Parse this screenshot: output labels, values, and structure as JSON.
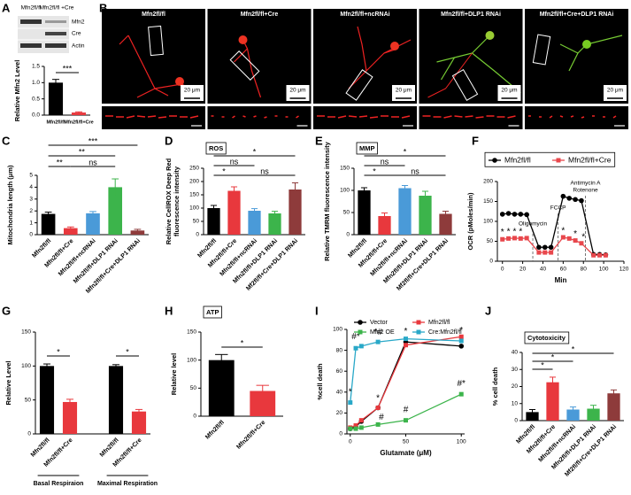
{
  "panel_labels": [
    "A",
    "B",
    "C",
    "D",
    "E",
    "F",
    "G",
    "H",
    "I",
    "J"
  ],
  "blot": {
    "columns": [
      "Mfn2fl/fl",
      "Mfn2fl/fl +Cre"
    ],
    "rows": [
      "Mfn2",
      "Cre",
      "Actin"
    ]
  },
  "micrographs": {
    "titles": [
      "Mfn2fl/fl",
      "Mfn2fl/fl+Cre",
      "Mfn2fl/fl+ncRNAi",
      "Mfn2fl/fl+DLP1 RNAi",
      "Mfn2fl/fl+Cre+DLP1 RNAi"
    ],
    "scale_bar": "20 μm"
  },
  "chart_data": [
    {
      "type": "bar",
      "ylabel": "Relative Mfn2 Level",
      "categories": [
        "Mfn2fl/fl",
        "Mfn2fl/fl+Cre"
      ],
      "values": [
        1.0,
        0.08
      ],
      "errors": [
        0.1,
        0.02
      ],
      "colors": [
        "#000000",
        "#e8383d"
      ],
      "ylim": [
        0,
        1.5
      ],
      "yticks": [
        {
          "value": 0,
          "label": "0.0"
        },
        0.5,
        {
          "value": 1,
          "label": "1.0"
        },
        1.5
      ],
      "annotations": [
        "***"
      ]
    },
    {
      "type": "bar",
      "ylabel": "Mitochondria length (μm)",
      "categories": [
        "Mfn2fl/fl",
        "Mfn2fl/fl+Cre",
        "Mfn2fl/fl+ncRNAi",
        "Mfn2fl/fl+DLP1 RNAi",
        "Mfn2fl/fl+Cre+DLP1 RNAi"
      ],
      "values": [
        1.75,
        0.55,
        1.8,
        4.0,
        0.35
      ],
      "errors": [
        0.15,
        0.1,
        0.15,
        0.7,
        0.1
      ],
      "colors": [
        "#000000",
        "#e8383d",
        "#4a9ad8",
        "#3cb44b",
        "#8e3b3b"
      ],
      "ylim": [
        0,
        5
      ],
      "yticks": [
        0,
        1,
        2,
        3,
        4,
        5
      ],
      "annotations": [
        "***",
        "**",
        "**",
        "ns"
      ]
    },
    {
      "type": "bar",
      "tag": "ROS",
      "ylabel": [
        "Relative CellROX Deep Red",
        "fluorescence intensity"
      ],
      "categories": [
        "Mfn2fl/fl",
        "Mfn2fl/fl+Cre",
        "Mfn2fl/fl+ncRNAi",
        "Mfn2fl/fl+DLP1 RNAi",
        "Mf2fl/fl+Cre+DLP1 RNAi"
      ],
      "values": [
        100,
        165,
        90,
        80,
        170
      ],
      "errors": [
        10,
        15,
        8,
        8,
        25
      ],
      "colors": [
        "#000000",
        "#e8383d",
        "#4a9ad8",
        "#3cb44b",
        "#8e3b3b"
      ],
      "ylim": [
        0,
        250
      ],
      "yticks": [
        0,
        50,
        100,
        150,
        200,
        250
      ],
      "annotations": [
        "*",
        "ns",
        "*",
        "ns"
      ]
    },
    {
      "type": "bar",
      "tag": "MMP",
      "ylabel": [
        "Relative TMRM fluorescence intensity"
      ],
      "categories": [
        "Mfn2fl/fl",
        "Mfn2fl/fl+Cre",
        "Mfn2fl/fl+ncRNAi",
        "Mfn2fl/fl+DLP1 RNAi",
        "Mf2fl/fl+Cre+DLP1 RNAi"
      ],
      "values": [
        100,
        42,
        105,
        88,
        47
      ],
      "errors": [
        6,
        7,
        6,
        10,
        6
      ],
      "colors": [
        "#000000",
        "#e8383d",
        "#4a9ad8",
        "#3cb44b",
        "#8e3b3b"
      ],
      "ylim": [
        0,
        150
      ],
      "yticks": [
        0,
        50,
        100,
        150
      ],
      "annotations": [
        "*",
        "ns",
        "*",
        "ns"
      ]
    },
    {
      "type": "line",
      "ylabel": "OCR (pMoles/min)",
      "xlabel": "Min",
      "x": [
        0,
        6,
        12,
        18,
        24,
        36,
        42,
        48,
        60,
        66,
        72,
        78,
        90,
        96,
        102
      ],
      "series": [
        {
          "name": "Mfn2fl/fl",
          "color": "#000000",
          "marker": "circle",
          "values": [
            118,
            120,
            118,
            118,
            117,
            35,
            35,
            35,
            163,
            158,
            155,
            152,
            17,
            17,
            16
          ]
        },
        {
          "name": "Mfn2fl/fl+Cre",
          "color": "#e8474c",
          "marker": "square",
          "values": [
            55,
            57,
            58,
            57,
            58,
            22,
            22,
            22,
            60,
            57,
            52,
            45,
            15,
            15,
            15
          ]
        }
      ],
      "xlim": [
        -5,
        120
      ],
      "xticks": [
        0,
        20,
        40,
        60,
        80,
        100,
        120
      ],
      "ylim": [
        0,
        200
      ],
      "yticks": [
        0,
        50,
        100,
        150,
        200
      ],
      "events": [
        {
          "x": 30,
          "label": "Oligomycin"
        },
        {
          "x": 55,
          "label": "FCCP"
        },
        {
          "x": 82,
          "label": [
            "Antimycin A",
            "Rotenone"
          ]
        }
      ],
      "annotations": [
        {
          "text": "*",
          "x": 0,
          "y": 72
        },
        {
          "text": "*",
          "x": 6,
          "y": 74
        },
        {
          "text": "*",
          "x": 12,
          "y": 74
        },
        {
          "text": "*",
          "x": 18,
          "y": 74
        },
        {
          "text": "*",
          "x": 60,
          "y": 76
        },
        {
          "text": "*",
          "x": 72,
          "y": 68
        },
        {
          "text": "*",
          "x": 80,
          "y": 60
        }
      ],
      "legend": "top"
    },
    {
      "type": "bar",
      "ylabel": "Relative Level",
      "categories": [
        "Mfn2fl/fl",
        "Mfn2fl/fl+Cre",
        "Mfn2fl/fl",
        "Mfn2fl/fl+Cre"
      ],
      "group_labels": [
        "Basal Respiraion",
        "Maximal Respiration"
      ],
      "values": [
        100,
        47,
        100,
        33
      ],
      "errors": [
        3,
        4,
        2,
        3
      ],
      "colors": [
        "#000000",
        "#e8383d",
        "#000000",
        "#e8383d"
      ],
      "ylim": [
        0,
        150
      ],
      "yticks": [
        0,
        50,
        100,
        150
      ],
      "annotations": [
        "*",
        "*"
      ]
    },
    {
      "type": "bar",
      "tag": "ATP",
      "ylabel": "Relative level",
      "categories": [
        "Mfn2fl/fl",
        "Mfn2fl/fl+Cre"
      ],
      "values": [
        100,
        45
      ],
      "errors": [
        10,
        10
      ],
      "colors": [
        "#000000",
        "#e8383d"
      ],
      "ylim": [
        0,
        150
      ],
      "yticks": [
        0,
        50,
        100,
        150
      ],
      "annotations": [
        "*"
      ]
    },
    {
      "type": "line",
      "ylabel": "%cell death",
      "xlabel": "Glutamate (μM)",
      "x": [
        0,
        5,
        10,
        25,
        50,
        100
      ],
      "series": [
        {
          "name": "Vector",
          "color": "#000000",
          "marker": "circle",
          "values": [
            5,
            7,
            12,
            25,
            88,
            84
          ]
        },
        {
          "name": "Mfn2fl/fl",
          "color": "#e8383d",
          "marker": "square",
          "values": [
            6,
            8,
            13,
            25,
            85,
            93
          ]
        },
        {
          "name": "Mfn2 OE",
          "color": "#3cb44b",
          "marker": "square",
          "values": [
            5,
            5,
            6,
            9,
            13,
            38
          ]
        },
        {
          "name": "Cre:Mfn2fl/fl",
          "color": "#29a8c8",
          "marker": "square",
          "values": [
            30,
            82,
            84,
            88,
            91,
            89
          ]
        }
      ],
      "xlim": [
        -3,
        103
      ],
      "xticks": [
        0,
        50,
        100
      ],
      "ylim": [
        0,
        100
      ],
      "yticks": [
        0,
        20,
        40,
        60,
        80,
        100
      ],
      "annotations": [
        {
          "text": "*",
          "x": 0,
          "y": 40
        },
        {
          "text": "#*",
          "x": 5,
          "y": 93
        },
        {
          "text": "*#",
          "x": 25,
          "y": 97
        },
        {
          "text": "*",
          "x": 25,
          "y": 34
        },
        {
          "text": "#",
          "x": 28,
          "y": 16
        },
        {
          "text": "*",
          "x": 50,
          "y": 98
        },
        {
          "text": "#",
          "x": 50,
          "y": 23
        },
        {
          "text": "*",
          "x": 100,
          "y": 99
        },
        {
          "text": "#*",
          "x": 100,
          "y": 48
        }
      ],
      "legend": "upper left"
    },
    {
      "type": "bar",
      "tag": "Cytotoxicity",
      "ylabel": "% cell death",
      "categories": [
        "Mfn2fl/fl",
        "Mfn2fl/fl+Cre",
        "Mfn2fl/fl+ncRNAi",
        "Mfn2fl/fl+DLP1 RNAi",
        "Mf2fl/fl+Cre+DLP1 RNAi"
      ],
      "values": [
        5,
        22.5,
        6.5,
        7,
        16
      ],
      "errors": [
        1.5,
        3,
        1.5,
        2,
        2
      ],
      "colors": [
        "#000000",
        "#e8383d",
        "#4a9ad8",
        "#3cb44b",
        "#8e3b3b"
      ],
      "ylim": [
        0,
        40
      ],
      "yticks": [
        0,
        10,
        20,
        30,
        40
      ],
      "annotations": [
        "*",
        "*",
        "*"
      ]
    }
  ]
}
